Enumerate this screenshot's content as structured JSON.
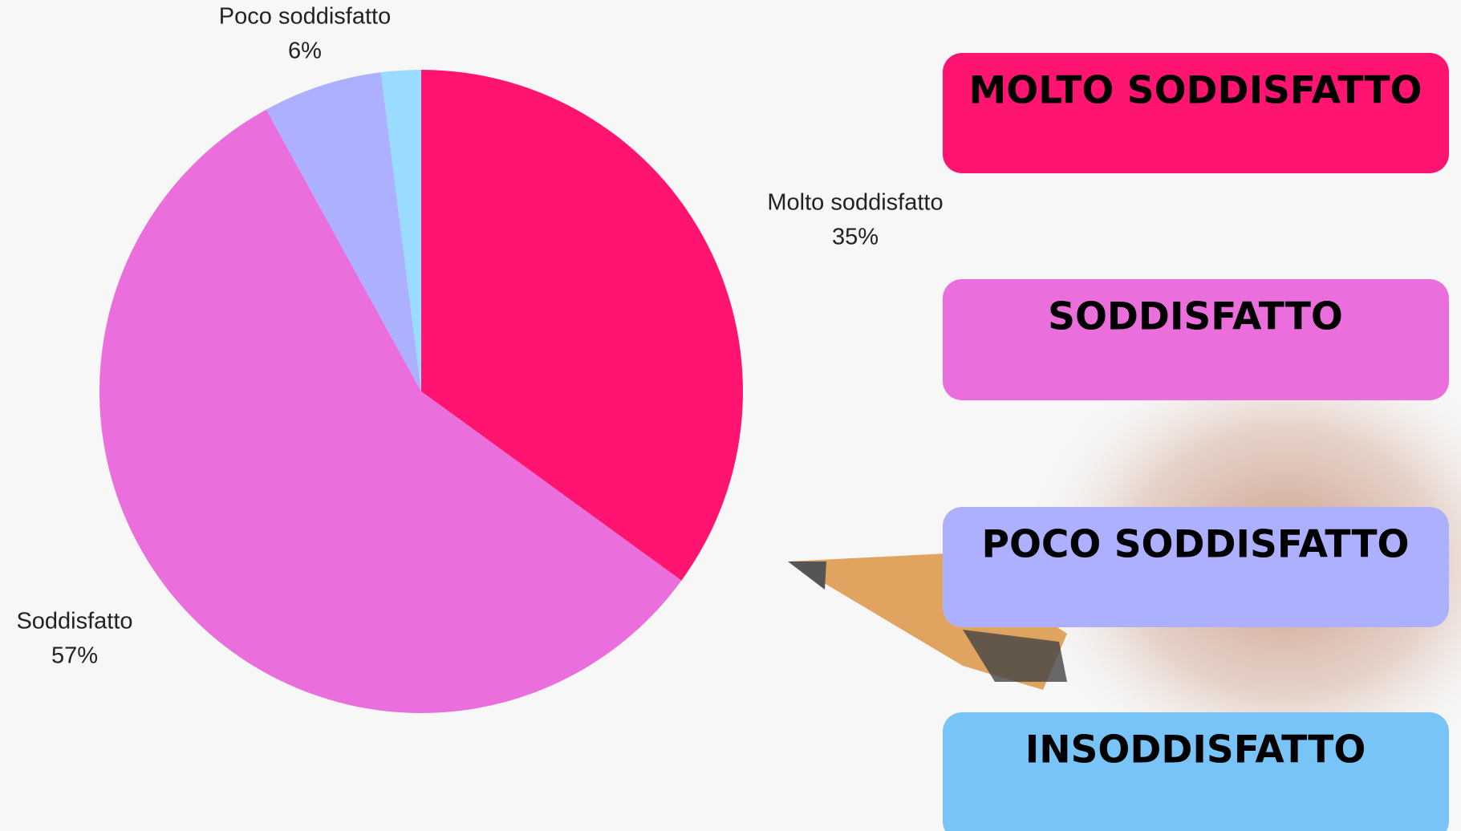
{
  "chart_data": {
    "type": "pie",
    "categories": [
      "Molto soddisfatto",
      "Soddisfatto",
      "Poco soddisfatto",
      null
    ],
    "values": [
      35,
      57,
      6,
      2
    ],
    "value_labels": [
      "35%",
      "57%",
      "6%",
      null
    ],
    "colors": [
      "#ff1472",
      "#ea6fdd",
      "#adb0ff",
      "#99dcff"
    ]
  },
  "legend_boxes": [
    {
      "label": "MOLTO SODDISFATTO",
      "color": "#ff1472"
    },
    {
      "label": "SODDISFATTO",
      "color": "#ea6fdd"
    },
    {
      "label": "POCO SODDISFATTO",
      "color": "#adb0ff"
    },
    {
      "label": "INSODDISFATTO",
      "color": "#79c4f7"
    }
  ]
}
